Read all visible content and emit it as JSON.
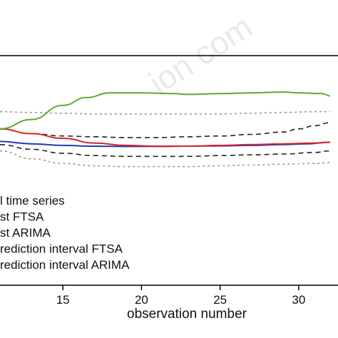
{
  "watermark": "ion com",
  "chart_data": {
    "type": "line",
    "xlabel": "observation number",
    "ylabel": "",
    "title": "",
    "x_ticks": [
      15,
      20,
      25,
      30
    ],
    "xlim": [
      11,
      32.5
    ],
    "ylim": [
      0,
      1
    ],
    "grid": false,
    "legend_placement": "lower-left",
    "series": [
      {
        "key": "obs",
        "name": "l time series",
        "color": "#5bab2c",
        "dash": "solid",
        "x": [
          11,
          13,
          15,
          16.5,
          18,
          20,
          22,
          23,
          25,
          27,
          29,
          30,
          31.5,
          32
        ],
        "y": [
          0.76,
          0.82,
          0.91,
          0.96,
          0.99,
          0.99,
          0.985,
          0.98,
          0.985,
          0.99,
          0.995,
          0.99,
          0.985,
          0.97
        ]
      },
      {
        "key": "ftsa",
        "name": "st FTSA",
        "color": "#d62728",
        "dash": "solid",
        "x": [
          11,
          13,
          15,
          17,
          19,
          21,
          23,
          25,
          27,
          29,
          31,
          32
        ],
        "y": [
          0.76,
          0.73,
          0.7,
          0.67,
          0.655,
          0.65,
          0.65,
          0.655,
          0.66,
          0.665,
          0.67,
          0.675
        ]
      },
      {
        "key": "arima",
        "name": "st ARIMA",
        "color": "#2538b8",
        "dash": "solid",
        "x": [
          11,
          13,
          15,
          17,
          19,
          21,
          23,
          25,
          27,
          29,
          30.5,
          32
        ],
        "y": [
          0.68,
          0.665,
          0.655,
          0.65,
          0.648,
          0.648,
          0.65,
          0.652,
          0.655,
          0.66,
          0.665,
          0.675
        ]
      },
      {
        "key": "pi_ftsa_up",
        "name": "rediction interval FTSA",
        "color": "#222222",
        "dash": "dashed",
        "x": [
          11,
          13,
          15,
          17,
          19,
          21,
          23,
          25,
          27,
          29,
          30,
          31,
          32
        ],
        "y": [
          0.76,
          0.73,
          0.715,
          0.71,
          0.705,
          0.705,
          0.71,
          0.715,
          0.725,
          0.74,
          0.76,
          0.78,
          0.8
        ]
      },
      {
        "key": "pi_ftsa_lo",
        "name": "",
        "color": "#222222",
        "dash": "dashed",
        "x": [
          11,
          13,
          15,
          17,
          19,
          21,
          23,
          25,
          27,
          29,
          31,
          32
        ],
        "y": [
          0.66,
          0.63,
          0.605,
          0.59,
          0.585,
          0.585,
          0.585,
          0.59,
          0.595,
          0.6,
          0.61,
          0.62
        ]
      },
      {
        "key": "pi_arima_up",
        "name": "rediction interval ARIMA",
        "color": "#999999",
        "dash": "dotted",
        "x": [
          11,
          13,
          15,
          17,
          19,
          21,
          23,
          25,
          27,
          29,
          31,
          32
        ],
        "y": [
          0.87,
          0.865,
          0.86,
          0.855,
          0.855,
          0.855,
          0.855,
          0.855,
          0.86,
          0.865,
          0.87,
          0.87
        ]
      },
      {
        "key": "pi_arima_lo",
        "name": "",
        "color": "#999999",
        "dash": "dotted",
        "x": [
          11,
          13,
          15,
          17,
          19,
          21,
          23,
          25,
          27,
          29,
          31,
          32
        ],
        "y": [
          0.62,
          0.57,
          0.54,
          0.525,
          0.52,
          0.52,
          0.52,
          0.525,
          0.53,
          0.535,
          0.54,
          0.545
        ]
      }
    ]
  }
}
